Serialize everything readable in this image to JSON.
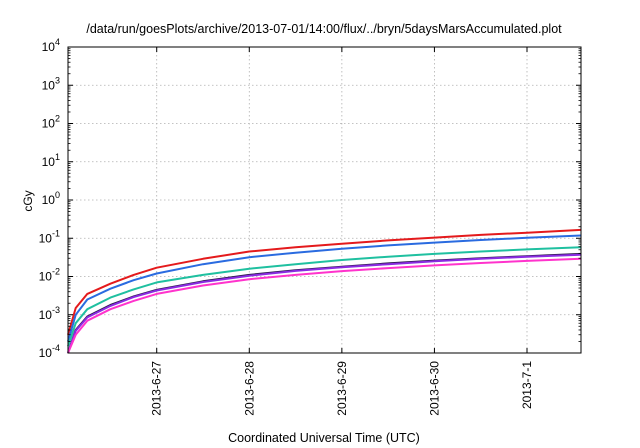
{
  "chart_data": {
    "type": "line",
    "title": "/data/run/goesPlots/archive/2013-07-01/14:00/flux/../bryn/5daysMarsAccumulated.plot",
    "xlabel": "Coordinated Universal Time (UTC)",
    "ylabel": "cGy",
    "yscale": "log",
    "ylim": [
      0.0001,
      10000
    ],
    "xlim": [
      "2013-06-26 01:00",
      "2013-07-01 14:00"
    ],
    "grid": true,
    "legend": "none",
    "x_ticks": [
      {
        "value": "2013-06-27 00:00",
        "label": "2013-6-27"
      },
      {
        "value": "2013-06-28 00:00",
        "label": "2013-6-28"
      },
      {
        "value": "2013-06-29 00:00",
        "label": "2013-6-29"
      },
      {
        "value": "2013-06-30 00:00",
        "label": "2013-6-30"
      },
      {
        "value": "2013-07-01 00:00",
        "label": "2013-7-1"
      }
    ],
    "y_ticks": [
      {
        "value": 0.0001,
        "base": "10",
        "exp": "-4"
      },
      {
        "value": 0.001,
        "base": "10",
        "exp": "-3"
      },
      {
        "value": 0.01,
        "base": "10",
        "exp": "-2"
      },
      {
        "value": 0.1,
        "base": "10",
        "exp": "-1"
      },
      {
        "value": 1,
        "base": "10",
        "exp": "0"
      },
      {
        "value": 10,
        "base": "10",
        "exp": "1"
      },
      {
        "value": 100,
        "base": "10",
        "exp": "2"
      },
      {
        "value": 1000,
        "base": "10",
        "exp": "3"
      },
      {
        "value": 10000,
        "base": "10",
        "exp": "4"
      }
    ],
    "x": [
      "2013-06-26 01:00",
      "2013-06-26 03:00",
      "2013-06-26 06:00",
      "2013-06-26 12:00",
      "2013-06-26 18:00",
      "2013-06-27 00:00",
      "2013-06-27 12:00",
      "2013-06-28 00:00",
      "2013-06-28 12:00",
      "2013-06-29 00:00",
      "2013-06-29 12:00",
      "2013-06-30 00:00",
      "2013-06-30 12:00",
      "2013-07-01 00:00",
      "2013-07-01 14:00"
    ],
    "series": [
      {
        "color": "#e41a1c",
        "values": [
          0.0003,
          0.0015,
          0.0035,
          0.0065,
          0.011,
          0.017,
          0.029,
          0.045,
          0.058,
          0.072,
          0.088,
          0.104,
          0.122,
          0.14,
          0.165
        ]
      },
      {
        "color": "#2a6be0",
        "values": [
          0.0002,
          0.001,
          0.0025,
          0.0048,
          0.008,
          0.012,
          0.021,
          0.032,
          0.042,
          0.053,
          0.065,
          0.077,
          0.09,
          0.103,
          0.118
        ]
      },
      {
        "color": "#1fc0a0",
        "values": [
          0.00015,
          0.0006,
          0.0014,
          0.0028,
          0.0046,
          0.007,
          0.011,
          0.016,
          0.021,
          0.027,
          0.033,
          0.039,
          0.045,
          0.051,
          0.058
        ]
      },
      {
        "color": "#2c1a4a",
        "values": [
          0.0001,
          0.0004,
          0.0009,
          0.0018,
          0.003,
          0.0045,
          0.0075,
          0.011,
          0.0145,
          0.018,
          0.022,
          0.026,
          0.03,
          0.034,
          0.039
        ]
      },
      {
        "color": "#8a2be2",
        "values": [
          0.0001,
          0.00038,
          0.00085,
          0.0017,
          0.0029,
          0.0043,
          0.0072,
          0.0105,
          0.014,
          0.0175,
          0.021,
          0.025,
          0.029,
          0.033,
          0.037
        ]
      },
      {
        "color": "#ff33cc",
        "values": [
          0.0001,
          0.0003,
          0.0007,
          0.0014,
          0.0023,
          0.0035,
          0.0058,
          0.0085,
          0.011,
          0.0138,
          0.0166,
          0.0195,
          0.0225,
          0.0255,
          0.029
        ]
      }
    ]
  }
}
